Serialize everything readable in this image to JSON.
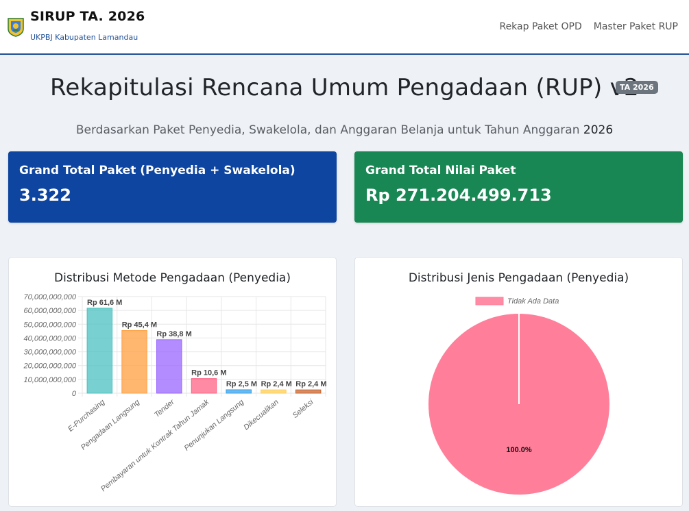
{
  "navbar": {
    "brand_title": "SIRUP TA. 2026",
    "brand_subtitle": "UKPBJ Kabupaten Lamandau",
    "links": [
      "Rekap Paket OPD",
      "Master Paket RUP"
    ]
  },
  "header": {
    "title": "Rekapitulasi Rencana Umum Pengadaan (RUP) v2",
    "badge": "TA 2026",
    "subtitle_prefix": "Berdasarkan Paket Penyedia, Swakelola, dan Anggaran Belanja untuk Tahun Anggaran ",
    "subtitle_year": "2026"
  },
  "cards": {
    "total_paket_label": "Grand Total Paket (Penyedia + Swakelola)",
    "total_paket_value": "3.322",
    "total_nilai_label": "Grand Total Nilai Paket",
    "total_nilai_value": "Rp 271.204.499.713"
  },
  "colors": {
    "brand_blue": "#0d45a0",
    "brand_green": "#198754",
    "nav_border": "#1f4e96"
  },
  "chart_data": [
    {
      "type": "bar",
      "title": "Distribusi Metode Pengadaan (Penyedia)",
      "categories": [
        "E-Purchasing",
        "Pengadaan Langsung",
        "Tender",
        "Pembayaran untuk Kontrak Tahun Jamak",
        "Penunjukan Langsung",
        "Dikecualikan",
        "Seleksi"
      ],
      "values": [
        61600000000,
        45400000000,
        38800000000,
        10600000000,
        2500000000,
        2400000000,
        2400000000
      ],
      "data_labels": [
        "Rp 61,6 M",
        "Rp 45,4 M",
        "Rp 38,8 M",
        "Rp 10,6 M",
        "Rp 2,5 M",
        "Rp 2,4 M",
        "Rp 2,4 M"
      ],
      "colors": [
        "#4bc0c0",
        "#ff9f40",
        "#9966ff",
        "#ff6384",
        "#36a2eb",
        "#ffcd56",
        "#c9642e"
      ],
      "yticks": [
        "0",
        "10,000,000,000",
        "20,000,000,000",
        "30,000,000,000",
        "40,000,000,000",
        "50,000,000,000",
        "60,000,000,000",
        "70,000,000,000"
      ],
      "ylim": [
        0,
        70000000000
      ],
      "grid": true,
      "legend": "none"
    },
    {
      "type": "pie",
      "title": "Distribusi Jenis Pengadaan (Penyedia)",
      "labels": [
        "Tidak Ada Data"
      ],
      "values": [
        100
      ],
      "data_labels": [
        "100.0%"
      ],
      "colors": [
        "#ff7f9a"
      ],
      "legend": "top"
    }
  ]
}
